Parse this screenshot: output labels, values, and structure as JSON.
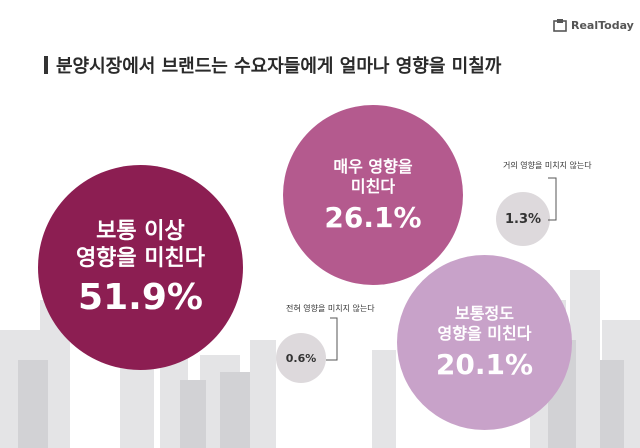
{
  "title": "분양시장에서 브랜드는 수요자들에게 얼마나 영향을 미칠까",
  "logo_text": "RealToday",
  "chart_data": {
    "type": "bubble",
    "title": "분양시장에서 브랜드는 수요자들에게 얼마나 영향을 미칠까",
    "categories": [
      "보통 이상 영향을 미친다",
      "매우 영향을 미친다",
      "거의 영향을 미치지 않는다",
      "보통정도 영향을 미친다",
      "전혀 영향을 미치지 않는다"
    ],
    "values": [
      51.9,
      26.1,
      1.3,
      20.1,
      0.6
    ],
    "unit": "%",
    "bubbles": [
      {
        "label_lines": [
          "보통 이상",
          "영향을 미친다"
        ],
        "value": 51.9,
        "value_text": "51.9%",
        "color": "#8c1e52"
      },
      {
        "label_lines": [
          "매우 영향을",
          "미친다"
        ],
        "value": 26.1,
        "value_text": "26.1%",
        "color": "#b45a8e"
      },
      {
        "callout": "거의 영향을 미치지 않는다",
        "value": 1.3,
        "value_text": "1.3%",
        "color": "#ddd9dc"
      },
      {
        "label_lines": [
          "보통정도",
          "영향을 미친다"
        ],
        "value": 20.1,
        "value_text": "20.1%",
        "color": "#c8a2c9"
      },
      {
        "callout": "전혀 영향을 미치지 않는다",
        "value": 0.6,
        "value_text": "0.6%",
        "color": "#ddd9dc"
      }
    ]
  }
}
